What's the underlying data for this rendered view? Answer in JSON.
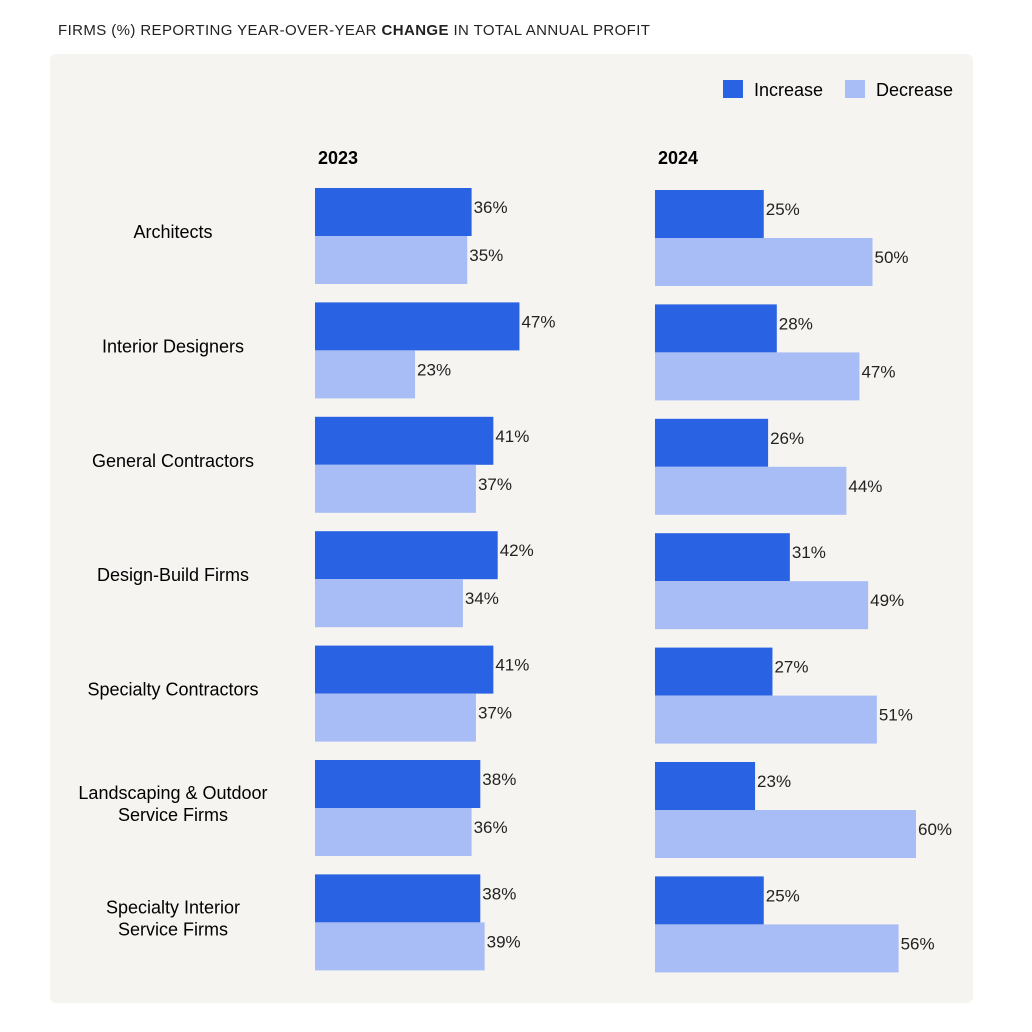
{
  "title_pre": "FIRMS (%) REPORTING YEAR-OVER-YEAR ",
  "title_bold": "CHANGE",
  "title_post": " IN TOTAL ANNUAL PROFIT",
  "colors": {
    "increase": "#2962e3",
    "decrease": "#a8bdf5"
  },
  "chart_data": {
    "type": "bar",
    "orientation": "horizontal",
    "title": "FIRMS (%) REPORTING YEAR-OVER-YEAR CHANGE IN TOTAL ANNUAL PROFIT",
    "legend": [
      "Increase",
      "Decrease"
    ],
    "legend_position": "top-right",
    "categories": [
      [
        "Architects"
      ],
      [
        "Interior Designers"
      ],
      [
        "General Contractors"
      ],
      [
        "Design-Build Firms"
      ],
      [
        "Specialty Contractors"
      ],
      [
        "Landscaping & Outdoor",
        "Service Firms"
      ],
      [
        "Specialty Interior",
        "Service Firms"
      ]
    ],
    "panels": [
      {
        "year": "2023",
        "series": [
          {
            "name": "Increase",
            "values": [
              36,
              47,
              41,
              42,
              41,
              38,
              38
            ]
          },
          {
            "name": "Decrease",
            "values": [
              35,
              23,
              37,
              34,
              37,
              36,
              39
            ]
          }
        ]
      },
      {
        "year": "2024",
        "series": [
          {
            "name": "Increase",
            "values": [
              25,
              28,
              26,
              31,
              27,
              23,
              25
            ]
          },
          {
            "name": "Decrease",
            "values": [
              50,
              47,
              44,
              49,
              51,
              60,
              56
            ]
          }
        ]
      }
    ],
    "value_suffix": "%"
  }
}
